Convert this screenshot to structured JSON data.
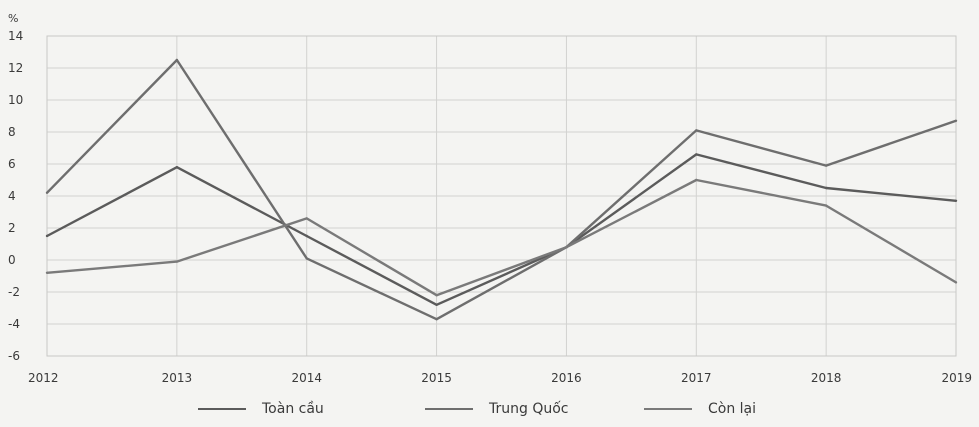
{
  "chart_data": {
    "type": "line",
    "unit_label": "%",
    "categories": [
      "2012",
      "2013",
      "2014",
      "2015",
      "2016",
      "2017",
      "2018",
      "2019"
    ],
    "ylim": [
      -6,
      14
    ],
    "yticks": [
      -6,
      -4,
      -2,
      0,
      2,
      4,
      6,
      8,
      10,
      12,
      14
    ],
    "grid": true,
    "legend_position": "bottom",
    "series": [
      {
        "name": "Toàn cầu",
        "values": [
          1.5,
          5.8,
          1.5,
          -2.8,
          0.8,
          6.6,
          4.5,
          3.7
        ],
        "color": "#5b5b5b"
      },
      {
        "name": "Trung Quốc",
        "values": [
          4.2,
          12.5,
          0.1,
          -3.7,
          0.8,
          8.1,
          5.9,
          8.7
        ],
        "color": "#6e6e6e"
      },
      {
        "name": "Còn lại",
        "values": [
          -0.8,
          -0.1,
          2.6,
          -2.2,
          0.8,
          5.0,
          3.4,
          -1.4
        ],
        "color": "#7a7a7a"
      }
    ]
  }
}
